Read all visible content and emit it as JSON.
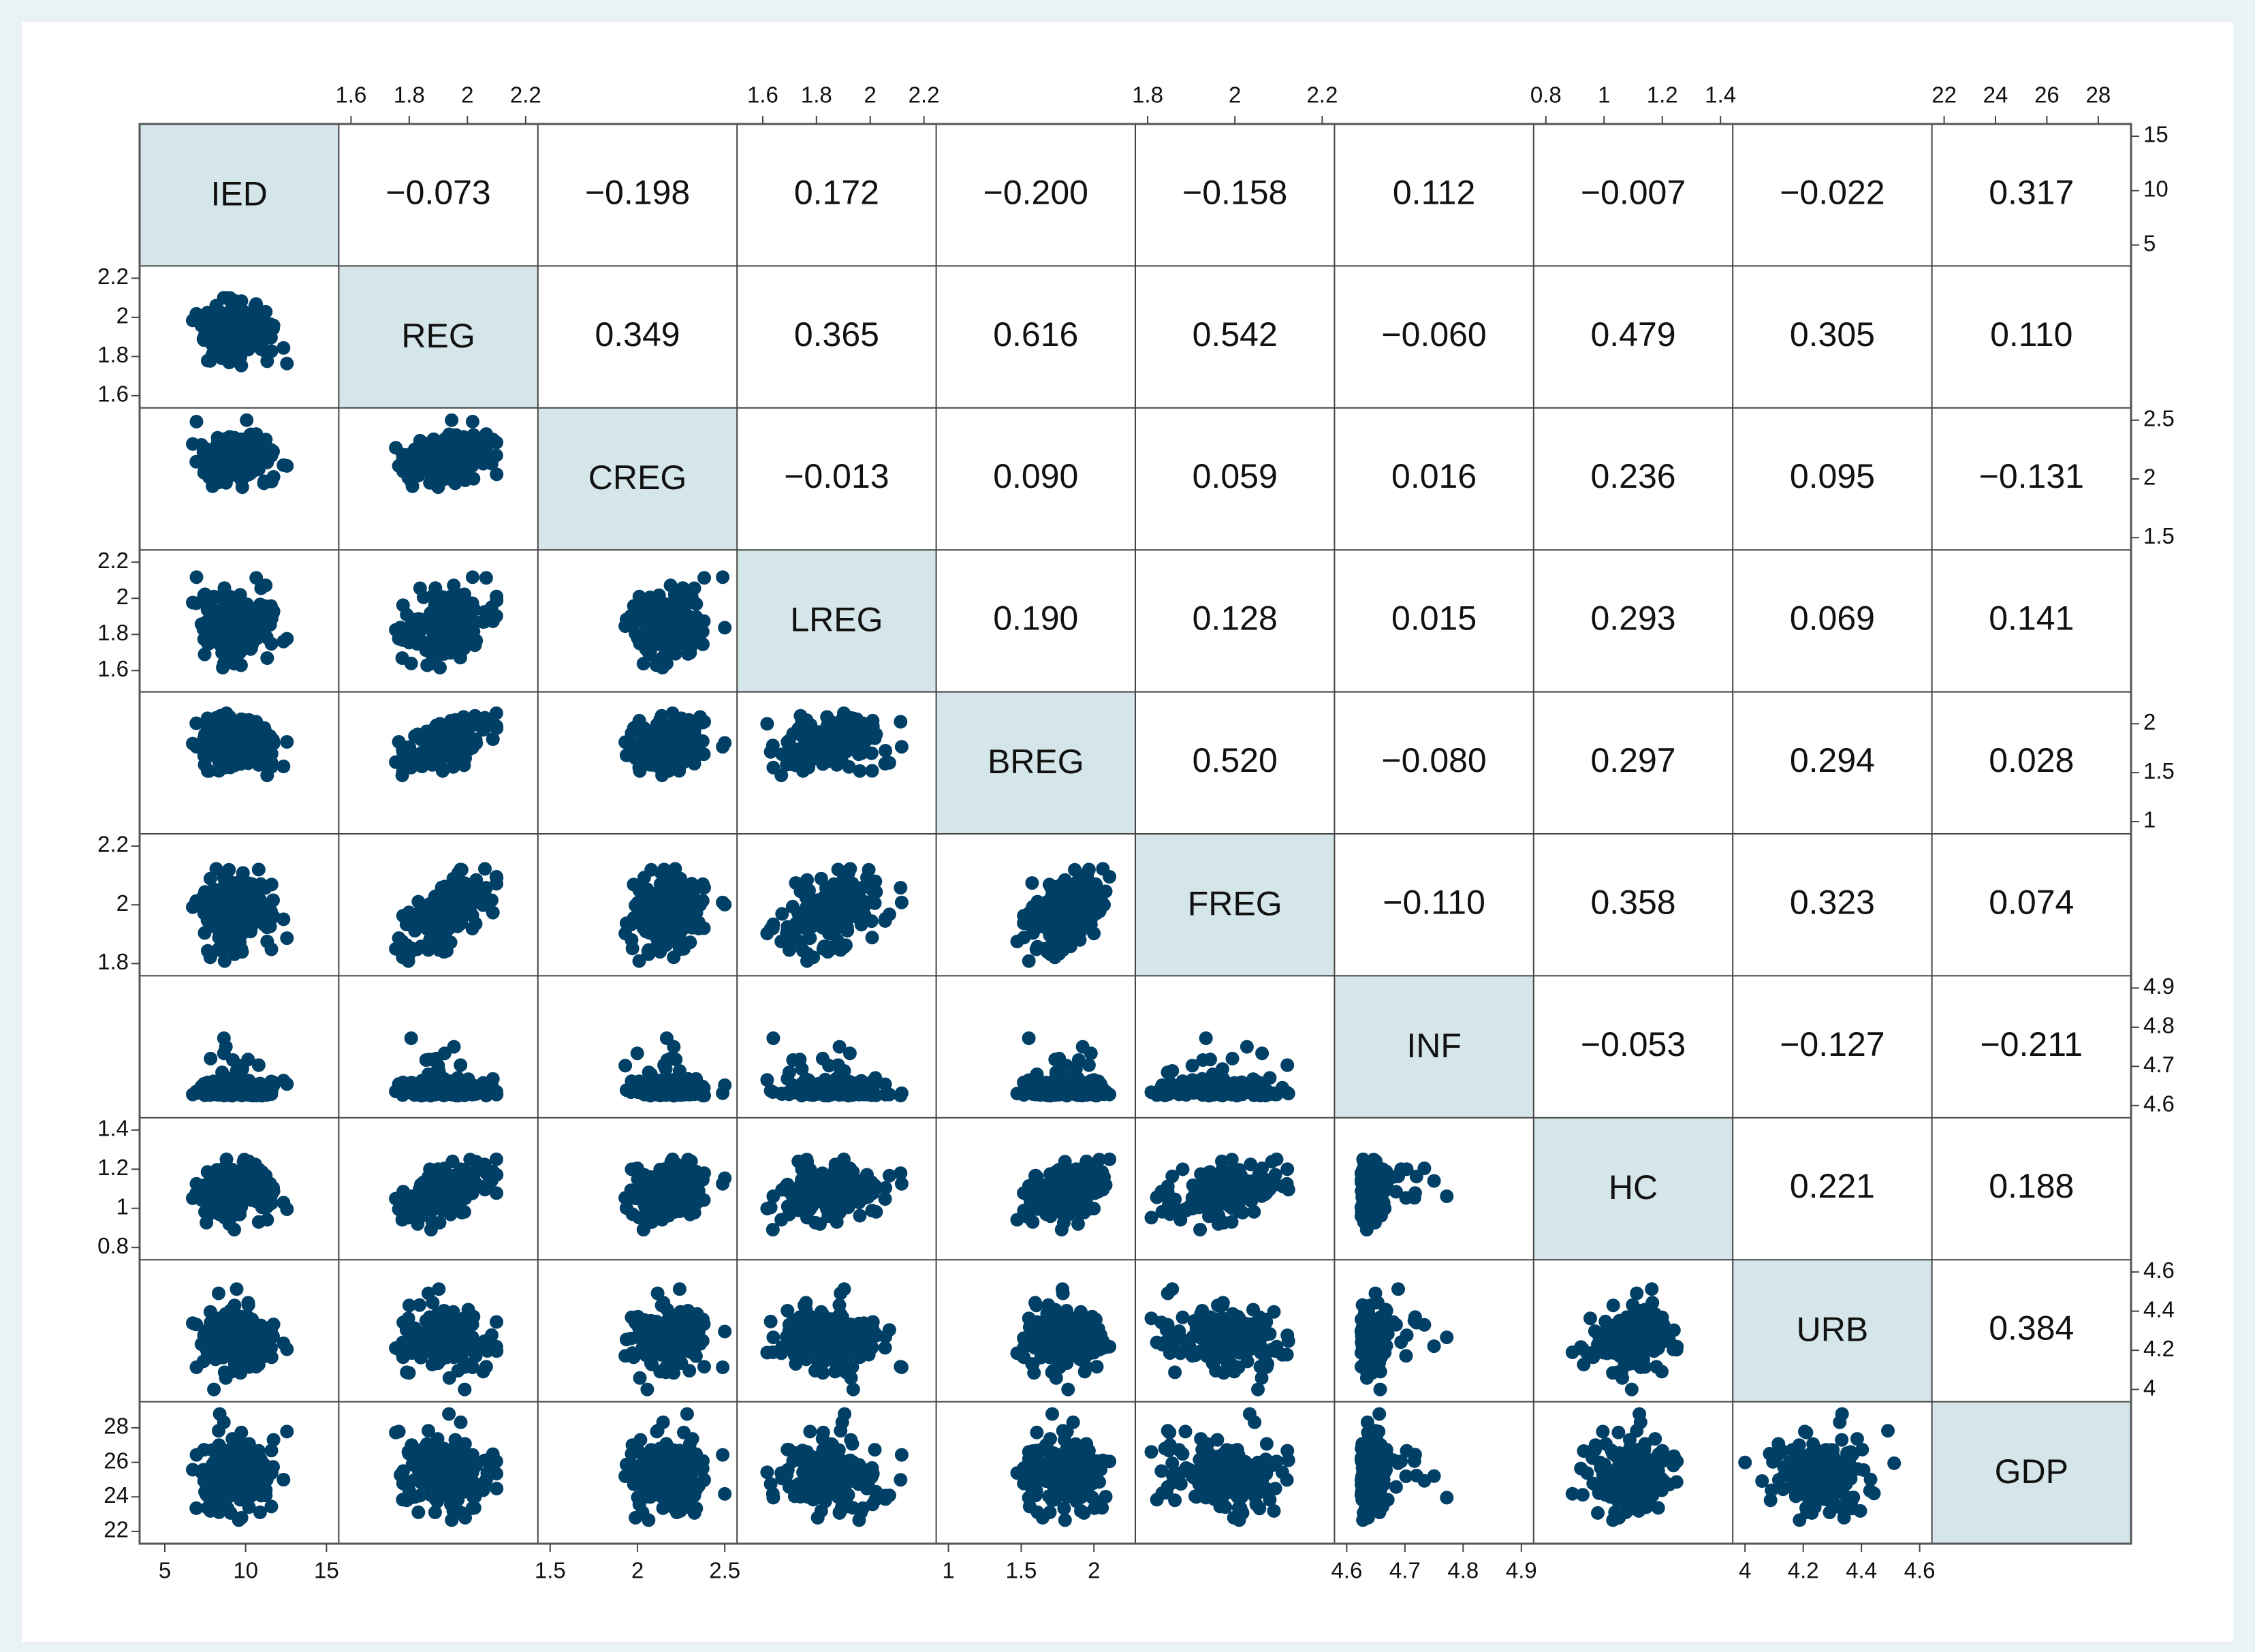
{
  "chart_data": {
    "type": "scatter-matrix",
    "title": "",
    "variables": [
      "IED",
      "REG",
      "CREG",
      "LREG",
      "BREG",
      "FREG",
      "INF",
      "HC",
      "URB",
      "GDP"
    ],
    "ranges": {
      "IED": [
        4.2,
        15.0
      ],
      "REG": [
        1.6,
        2.2
      ],
      "CREG": [
        1.5,
        2.5
      ],
      "LREG": [
        1.55,
        2.2
      ],
      "BREG": [
        1.0,
        2.2
      ],
      "FREG": [
        1.8,
        2.2
      ],
      "INF": [
        4.6,
        4.9
      ],
      "HC": [
        0.8,
        1.4
      ],
      "URB": [
        4.0,
        4.6
      ],
      "GDP": [
        22.0,
        28.8
      ]
    },
    "axes": [
      {
        "var": "IED",
        "side": "bottom",
        "ticks": [
          5,
          10,
          15
        ],
        "labels": [
          "5",
          "10",
          "15"
        ]
      },
      {
        "var": "IED",
        "side": "right",
        "ticks": [
          5,
          10,
          15
        ],
        "labels": [
          "5",
          "10",
          "15"
        ]
      },
      {
        "var": "REG",
        "side": "top",
        "ticks": [
          1.6,
          1.8,
          2,
          2.2
        ],
        "labels": [
          "1.6",
          "1.8",
          "2",
          "2.2"
        ]
      },
      {
        "var": "REG",
        "side": "left",
        "ticks": [
          1.6,
          1.8,
          2,
          2.2
        ],
        "labels": [
          "1.6",
          "1.8",
          "2",
          "2.2"
        ]
      },
      {
        "var": "CREG",
        "side": "bottom",
        "ticks": [
          1.5,
          2,
          2.5
        ],
        "labels": [
          "1.5",
          "2",
          "2.5"
        ]
      },
      {
        "var": "CREG",
        "side": "right",
        "ticks": [
          1.5,
          2,
          2.5
        ],
        "labels": [
          "1.5",
          "2",
          "2.5"
        ]
      },
      {
        "var": "LREG",
        "side": "top",
        "ticks": [
          1.6,
          1.8,
          2,
          2.2
        ],
        "labels": [
          "1.6",
          "1.8",
          "2",
          "2.2"
        ]
      },
      {
        "var": "LREG",
        "side": "left",
        "ticks": [
          1.6,
          1.8,
          2,
          2.2
        ],
        "labels": [
          "1.6",
          "1.8",
          "2",
          "2.2"
        ]
      },
      {
        "var": "BREG",
        "side": "bottom",
        "ticks": [
          1,
          1.5,
          2
        ],
        "labels": [
          "1",
          "1.5",
          "2"
        ]
      },
      {
        "var": "BREG",
        "side": "right",
        "ticks": [
          1,
          1.5,
          2
        ],
        "labels": [
          "1",
          "1.5",
          "2"
        ]
      },
      {
        "var": "FREG",
        "side": "top",
        "ticks": [
          1.8,
          2,
          2.2
        ],
        "labels": [
          "1.8",
          "2",
          "2.2"
        ]
      },
      {
        "var": "FREG",
        "side": "left",
        "ticks": [
          1.8,
          2,
          2.2
        ],
        "labels": [
          "1.8",
          "2",
          "2.2"
        ]
      },
      {
        "var": "INF",
        "side": "bottom",
        "ticks": [
          4.6,
          4.7,
          4.8,
          4.9
        ],
        "labels": [
          "4.6",
          "4.7",
          "4.8",
          "4.9"
        ]
      },
      {
        "var": "INF",
        "side": "right",
        "ticks": [
          4.6,
          4.7,
          4.8,
          4.9
        ],
        "labels": [
          "4.6",
          "4.7",
          "4.8",
          "4.9"
        ]
      },
      {
        "var": "HC",
        "side": "top",
        "ticks": [
          0.8,
          1,
          1.2,
          1.4
        ],
        "labels": [
          "0.8",
          "1",
          "1.2",
          "1.4"
        ]
      },
      {
        "var": "HC",
        "side": "left",
        "ticks": [
          0.8,
          1,
          1.2,
          1.4
        ],
        "labels": [
          "0.8",
          "1",
          "1.2",
          "1.4"
        ]
      },
      {
        "var": "URB",
        "side": "bottom",
        "ticks": [
          4,
          4.2,
          4.4,
          4.6
        ],
        "labels": [
          "4",
          "4.2",
          "4.4",
          "4.6"
        ]
      },
      {
        "var": "URB",
        "side": "right",
        "ticks": [
          4,
          4.2,
          4.4,
          4.6
        ],
        "labels": [
          "4",
          "4.2",
          "4.4",
          "4.6"
        ]
      },
      {
        "var": "GDP",
        "side": "top",
        "ticks": [
          22,
          24,
          26,
          28
        ],
        "labels": [
          "22",
          "24",
          "26",
          "28"
        ]
      },
      {
        "var": "GDP",
        "side": "left",
        "ticks": [
          22,
          24,
          26,
          28
        ],
        "labels": [
          "22",
          "24",
          "26",
          "28"
        ]
      }
    ],
    "correlations": [
      [
        "",
        "−0.073",
        "−0.198",
        "0.172",
        "−0.200",
        "−0.158",
        "0.112",
        "−0.007",
        "−0.022",
        "0.317"
      ],
      [
        "",
        "",
        "0.349",
        "0.365",
        "0.616",
        "0.542",
        "−0.060",
        "0.479",
        "0.305",
        "0.110"
      ],
      [
        "",
        "",
        "",
        "−0.013",
        "0.090",
        "0.059",
        "0.016",
        "0.236",
        "0.095",
        "−0.131"
      ],
      [
        "",
        "",
        "",
        "",
        "0.190",
        "0.128",
        "0.015",
        "0.293",
        "0.069",
        "0.141"
      ],
      [
        "",
        "",
        "",
        "",
        "",
        "0.520",
        "−0.080",
        "0.297",
        "0.294",
        "0.028"
      ],
      [
        "",
        "",
        "",
        "",
        "",
        "",
        "−0.110",
        "0.358",
        "0.323",
        "0.074"
      ],
      [
        "",
        "",
        "",
        "",
        "",
        "",
        "",
        "−0.053",
        "−0.127",
        "−0.211"
      ],
      [
        "",
        "",
        "",
        "",
        "",
        "",
        "",
        "",
        "0.221",
        "0.188"
      ],
      [
        "",
        "",
        "",
        "",
        "",
        "",
        "",
        "",
        "",
        "0.384"
      ],
      [
        "",
        "",
        "",
        "",
        "",
        "",
        "",
        "",
        "",
        ""
      ]
    ],
    "diagonal_fill": "#d5e6ea",
    "point_color": "#003f66",
    "n_observations_approx": 180,
    "note": "Lower-triangle cells are scatter plots of the row variable (y) against the column variable (x); upper-triangle cells print the pairwise correlation coefficient."
  }
}
